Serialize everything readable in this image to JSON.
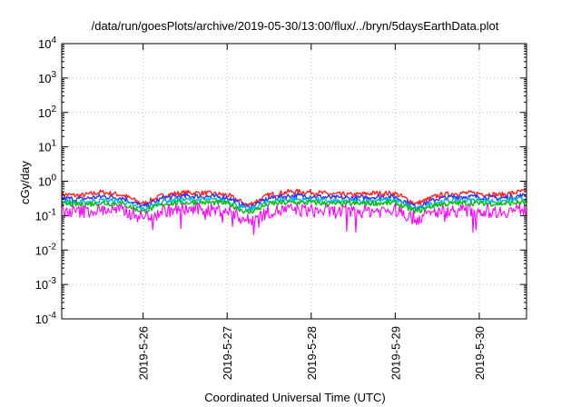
{
  "chart_data": {
    "type": "line",
    "title": "/data/run/goesPlots/archive/2019-05-30/13:00/flux/../bryn/5daysEarthData.plot",
    "xlabel": "Coordinated Universal Time (UTC)",
    "ylabel": "cGy/day",
    "yscale": "log",
    "ylim": [
      0.0001,
      10000
    ],
    "y_ticks": [
      {
        "base": "10",
        "exp": "-4",
        "value": 0.0001
      },
      {
        "base": "10",
        "exp": "-3",
        "value": 0.001
      },
      {
        "base": "10",
        "exp": "-2",
        "value": 0.01
      },
      {
        "base": "10",
        "exp": "-1",
        "value": 0.1
      },
      {
        "base": "10",
        "exp": "0",
        "value": 1
      },
      {
        "base": "10",
        "exp": "1",
        "value": 10
      },
      {
        "base": "10",
        "exp": "2",
        "value": 100
      },
      {
        "base": "10",
        "exp": "3",
        "value": 1000
      },
      {
        "base": "10",
        "exp": "4",
        "value": 10000
      }
    ],
    "xlim": [
      "2019-05-25 00:45",
      "2019-05-30 13:30"
    ],
    "x_ticks": [
      "2019-5-26",
      "2019-5-27",
      "2019-5-28",
      "2019-5-29",
      "2019-5-30"
    ],
    "grid": true,
    "x_sample_days": [
      "2019-05-25",
      "2019-05-25 06:00",
      "2019-05-25 12:00",
      "2019-05-25 18:00",
      "2019-05-26",
      "2019-05-26 06:00",
      "2019-05-26 12:00",
      "2019-05-26 18:00",
      "2019-05-27",
      "2019-05-27 06:00",
      "2019-05-27 12:00",
      "2019-05-27 18:00",
      "2019-05-28",
      "2019-05-28 06:00",
      "2019-05-28 12:00",
      "2019-05-28 18:00",
      "2019-05-29",
      "2019-05-29 06:00",
      "2019-05-29 12:00",
      "2019-05-29 18:00",
      "2019-05-30",
      "2019-05-30 06:00",
      "2019-05-30 12:00"
    ],
    "series": [
      {
        "color": "#ff2020",
        "values": [
          0.42,
          0.38,
          0.48,
          0.4,
          0.22,
          0.4,
          0.46,
          0.45,
          0.4,
          0.2,
          0.4,
          0.5,
          0.48,
          0.42,
          0.4,
          0.45,
          0.44,
          0.22,
          0.38,
          0.46,
          0.44,
          0.4,
          0.5
        ]
      },
      {
        "color": "#3030ff",
        "values": [
          0.32,
          0.3,
          0.36,
          0.33,
          0.18,
          0.33,
          0.37,
          0.36,
          0.34,
          0.17,
          0.32,
          0.38,
          0.37,
          0.33,
          0.32,
          0.35,
          0.35,
          0.18,
          0.31,
          0.36,
          0.35,
          0.32,
          0.38
        ]
      },
      {
        "color": "#00b8d8",
        "values": [
          0.26,
          0.24,
          0.28,
          0.26,
          0.15,
          0.27,
          0.29,
          0.29,
          0.27,
          0.14,
          0.26,
          0.3,
          0.29,
          0.26,
          0.26,
          0.28,
          0.28,
          0.15,
          0.25,
          0.28,
          0.28,
          0.26,
          0.3
        ]
      },
      {
        "color": "#00c000",
        "values": [
          0.22,
          0.21,
          0.23,
          0.22,
          0.13,
          0.22,
          0.24,
          0.24,
          0.23,
          0.12,
          0.22,
          0.24,
          0.24,
          0.22,
          0.22,
          0.23,
          0.23,
          0.13,
          0.21,
          0.23,
          0.23,
          0.22,
          0.24
        ]
      },
      {
        "color": "#ff00ff",
        "values": [
          0.14,
          0.13,
          0.15,
          0.14,
          0.09,
          0.14,
          0.15,
          0.15,
          0.14,
          0.07,
          0.13,
          0.15,
          0.14,
          0.13,
          0.13,
          0.14,
          0.14,
          0.08,
          0.13,
          0.14,
          0.14,
          0.13,
          0.15
        ]
      }
    ]
  }
}
